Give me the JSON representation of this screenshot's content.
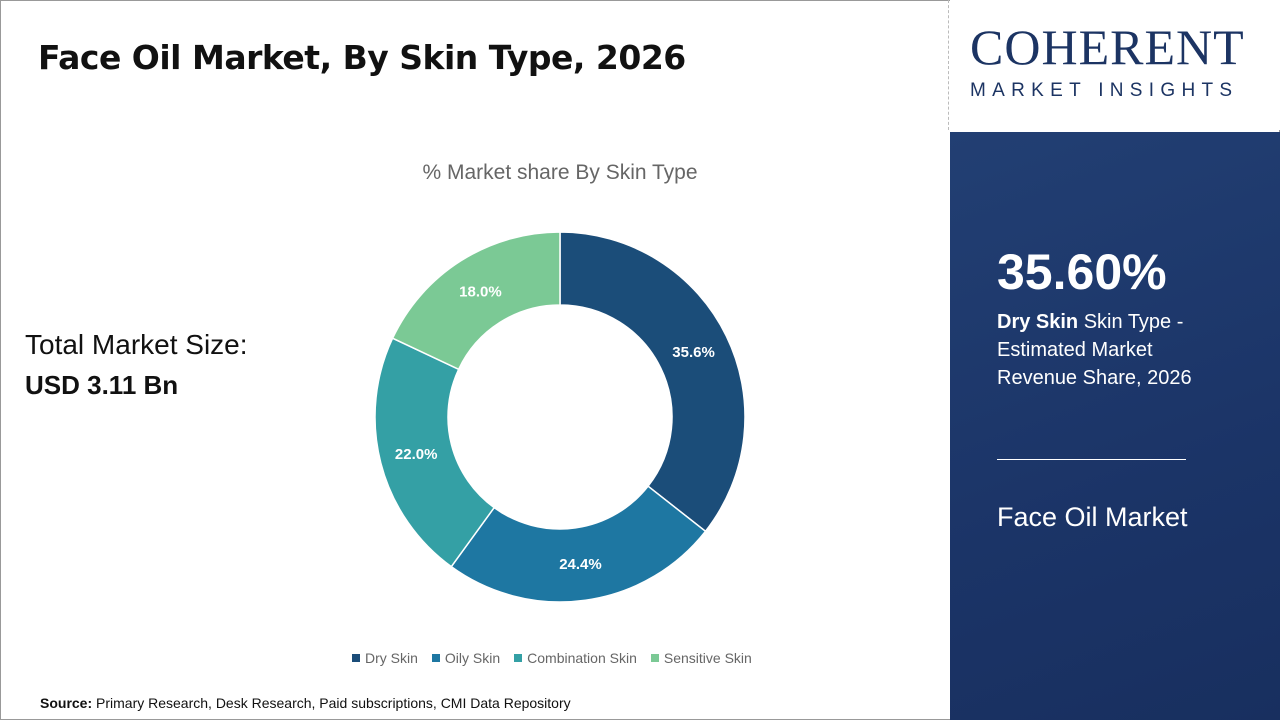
{
  "header": {
    "title": "Face Oil Market, By Skin Type, 2026"
  },
  "total": {
    "label": "Total Market Size:",
    "value": "USD 3.11 Bn"
  },
  "logo": {
    "main": "COHERENT",
    "sub": "MARKET INSIGHTS"
  },
  "panel": {
    "percent": "35.60%",
    "desc_bold": "Dry Skin",
    "desc_rest": " Skin Type - Estimated Market Revenue Share, 2026",
    "market": "Face Oil Market"
  },
  "source": {
    "label": "Source:",
    "text": " Primary Research, Desk Research, Paid subscriptions, CMI Data Repository"
  },
  "chart_data": {
    "type": "pie",
    "variant": "donut",
    "title": "% Market share By Skin Type",
    "categories": [
      "Dry Skin",
      "Oily Skin",
      "Combination Skin",
      "Sensitive Skin"
    ],
    "values": [
      35.6,
      24.4,
      22.0,
      18.0
    ],
    "labels": [
      "35.6%",
      "24.4%",
      "22.0%",
      "18.0%"
    ],
    "colors": [
      "#1b4d79",
      "#1e77a2",
      "#34a0a5",
      "#7bc995"
    ],
    "legend": "bottom"
  }
}
